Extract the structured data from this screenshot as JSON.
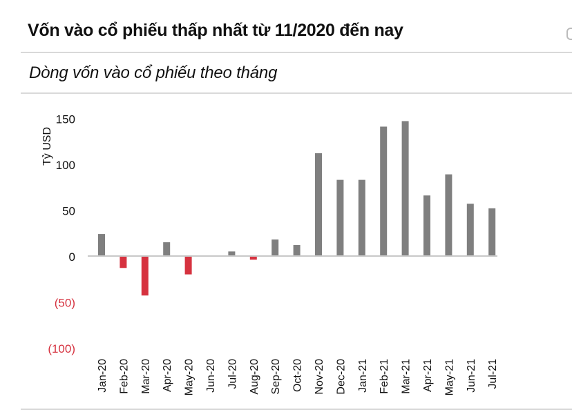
{
  "header": {
    "title": "Vốn vào cổ phiếu thấp nhất từ 11/2020 đến nay",
    "subtitle": "Dòng vốn vào cổ phiếu theo tháng"
  },
  "colors": {
    "positive": "#7f7f7f",
    "negative": "#d6323f",
    "negative_label": "#d6323f",
    "axis": "#c8c8c8",
    "text": "#111111"
  },
  "chart_data": {
    "type": "bar",
    "title": "Dòng vốn vào cổ phiếu theo tháng",
    "xlabel": "",
    "ylabel": "Tỷ USD",
    "ylim": [
      -100,
      150
    ],
    "yticks": [
      {
        "value": 150,
        "label": "150"
      },
      {
        "value": 100,
        "label": "100"
      },
      {
        "value": 50,
        "label": "50"
      },
      {
        "value": 0,
        "label": "0"
      },
      {
        "value": -50,
        "label": "(50)"
      },
      {
        "value": -100,
        "label": "(100)"
      }
    ],
    "grid": false,
    "categories": [
      "Jan-20",
      "Feb-20",
      "Mar-20",
      "Apr-20",
      "May-20",
      "Jun-20",
      "Jul-20",
      "Aug-20",
      "Sep-20",
      "Oct-20",
      "Nov-20",
      "Dec-20",
      "Jan-21",
      "Feb-21",
      "Mar-21",
      "Apr-21",
      "May-21",
      "Jun-21",
      "Jul-21"
    ],
    "values": [
      24,
      -13,
      -43,
      15,
      -20,
      0.5,
      5,
      -4,
      18,
      12,
      112,
      83,
      83,
      141,
      147,
      66,
      89,
      57,
      52
    ]
  }
}
